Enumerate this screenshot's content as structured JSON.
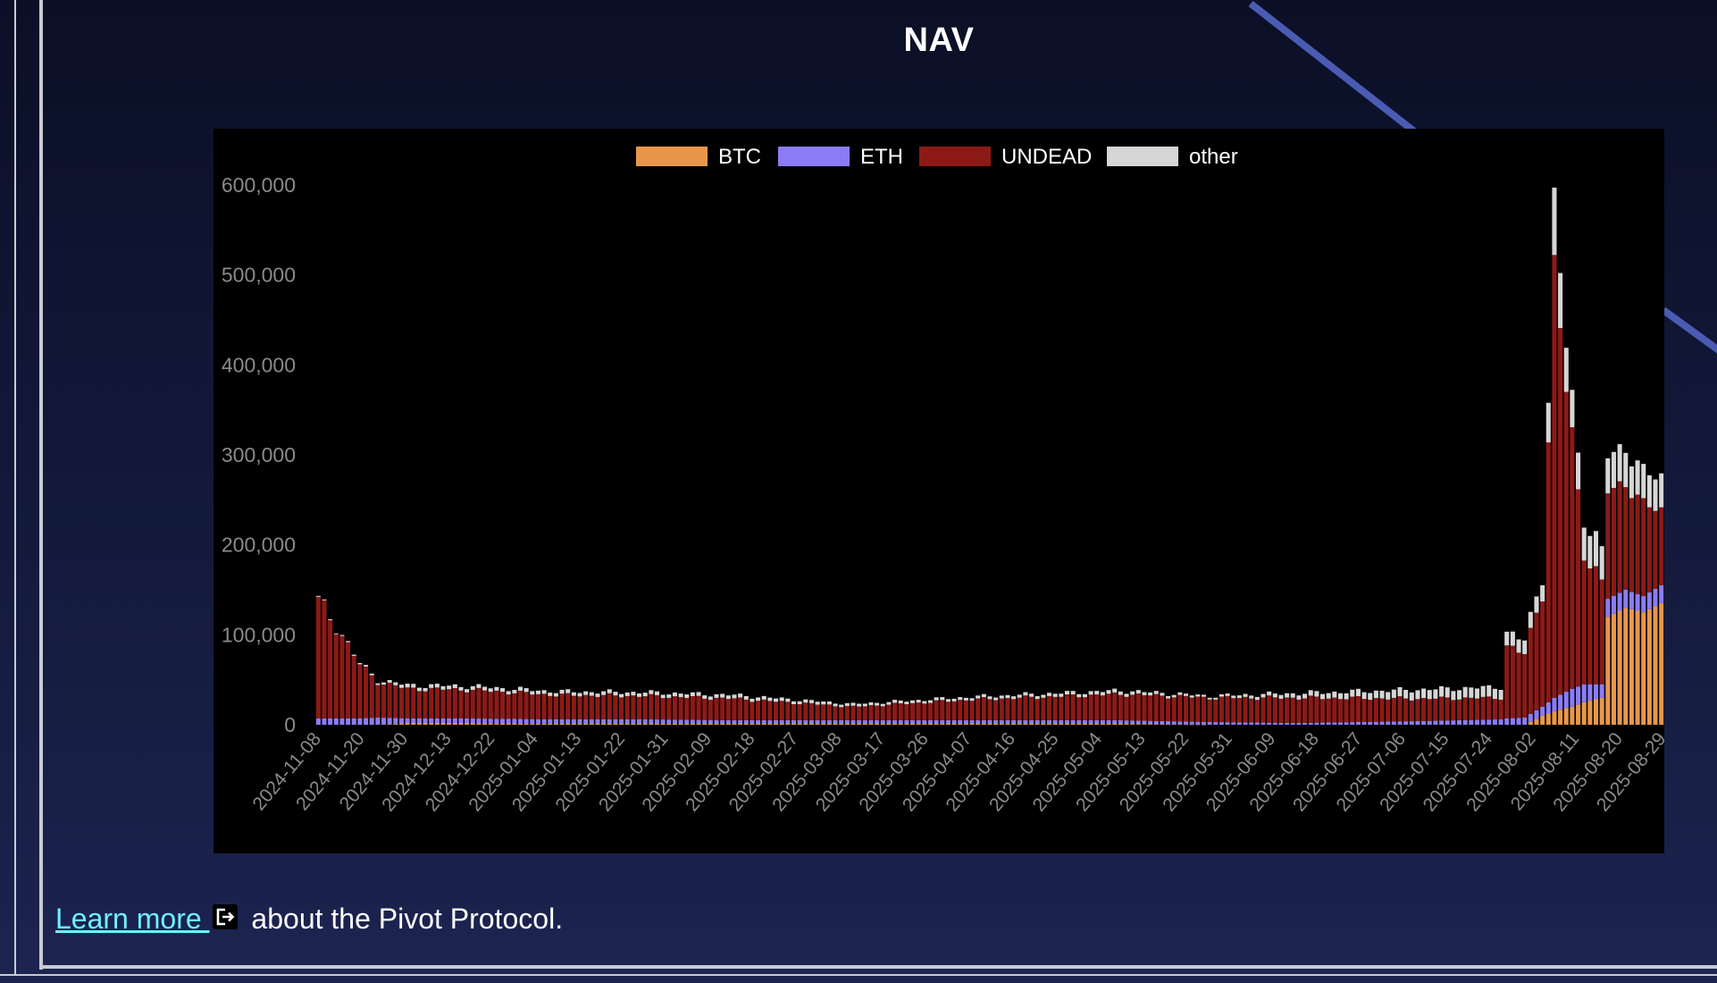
{
  "title": "NAV",
  "footer": {
    "link_text": "Learn more ",
    "link_icon": "external-link-icon",
    "suffix_text": " about the Pivot Protocol."
  },
  "colors": {
    "BTC": "#e8974a",
    "ETH": "#8b7cf6",
    "UNDEAD": "#8b1a17",
    "other": "#d6d6d6",
    "link": "#6ff2ff"
  },
  "chart_data": {
    "type": "bar",
    "stacked": true,
    "title": "",
    "xlabel": "",
    "ylabel": "",
    "ylim": [
      0,
      600000
    ],
    "y_ticks": [
      0,
      100000,
      200000,
      300000,
      400000,
      500000,
      600000
    ],
    "y_tick_labels": [
      "0",
      "100,000",
      "200,000",
      "300,000",
      "400,000",
      "500,000",
      "600,000"
    ],
    "grid": false,
    "legend": "top-center",
    "series_names": [
      "BTC",
      "ETH",
      "UNDEAD",
      "other"
    ],
    "x_tick_labels": [
      "2024-11-08",
      "2024-11-20",
      "2024-11-30",
      "2024-12-13",
      "2024-12-22",
      "2025-01-04",
      "2025-01-13",
      "2025-01-22",
      "2025-01-31",
      "2025-02-09",
      "2025-02-18",
      "2025-02-27",
      "2025-03-08",
      "2025-03-17",
      "2025-03-26",
      "2025-04-07",
      "2025-04-16",
      "2025-04-25",
      "2025-05-04",
      "2025-05-13",
      "2025-05-22",
      "2025-05-31",
      "2025-06-09",
      "2025-06-18",
      "2025-06-27",
      "2025-07-06",
      "2025-07-15",
      "2025-07-24",
      "2025-08-02",
      "2025-08-11",
      "2025-08-20",
      "2025-08-29"
    ],
    "anchors": [
      {
        "pos": 0,
        "BTC": 0,
        "ETH": 7000,
        "UNDEAD": 130000,
        "other": 1000
      },
      {
        "pos": 3,
        "BTC": 0,
        "ETH": 7000,
        "UNDEAD": 103000,
        "other": 1000
      },
      {
        "pos": 7,
        "BTC": 0,
        "ETH": 7000,
        "UNDEAD": 60000,
        "other": 1500
      },
      {
        "pos": 10,
        "BTC": 0,
        "ETH": 8000,
        "UNDEAD": 40000,
        "other": 2000
      },
      {
        "pos": 15,
        "BTC": 2000,
        "ETH": 5000,
        "UNDEAD": 33000,
        "other": 4000
      },
      {
        "pos": 25,
        "BTC": 2000,
        "ETH": 5000,
        "UNDEAD": 32000,
        "other": 4000
      },
      {
        "pos": 40,
        "BTC": 1000,
        "ETH": 5000,
        "UNDEAD": 27000,
        "other": 4000
      },
      {
        "pos": 55,
        "BTC": 1000,
        "ETH": 5000,
        "UNDEAD": 26000,
        "other": 4000
      },
      {
        "pos": 70,
        "BTC": 1000,
        "ETH": 4000,
        "UNDEAD": 24000,
        "other": 4000
      },
      {
        "pos": 90,
        "BTC": 1000,
        "ETH": 4000,
        "UNDEAD": 15000,
        "other": 3000
      },
      {
        "pos": 110,
        "BTC": 1000,
        "ETH": 4000,
        "UNDEAD": 23000,
        "other": 3000
      },
      {
        "pos": 135,
        "BTC": 1000,
        "ETH": 4000,
        "UNDEAD": 29000,
        "other": 4000
      },
      {
        "pos": 150,
        "BTC": 0,
        "ETH": 3000,
        "UNDEAD": 27000,
        "other": 2000
      },
      {
        "pos": 165,
        "BTC": 0,
        "ETH": 2000,
        "UNDEAD": 28000,
        "other": 5000
      },
      {
        "pos": 185,
        "BTC": 0,
        "ETH": 4000,
        "UNDEAD": 25000,
        "other": 10000
      },
      {
        "pos": 199,
        "BTC": 0,
        "ETH": 6000,
        "UNDEAD": 24000,
        "other": 12000
      },
      {
        "pos": 200,
        "BTC": 0,
        "ETH": 7000,
        "UNDEAD": 80000,
        "other": 15000
      },
      {
        "pos": 203,
        "BTC": 0,
        "ETH": 8000,
        "UNDEAD": 70000,
        "other": 15000
      },
      {
        "pos": 206,
        "BTC": 10000,
        "ETH": 10000,
        "UNDEAD": 130000,
        "other": 20000
      },
      {
        "pos": 208,
        "BTC": 15000,
        "ETH": 15000,
        "UNDEAD": 460000,
        "other": 70000
      },
      {
        "pos": 211,
        "BTC": 20000,
        "ETH": 20000,
        "UNDEAD": 280000,
        "other": 40000
      },
      {
        "pos": 213,
        "BTC": 25000,
        "ETH": 20000,
        "UNDEAD": 150000,
        "other": 40000
      },
      {
        "pos": 216,
        "BTC": 30000,
        "ETH": 15000,
        "UNDEAD": 110000,
        "other": 35000
      },
      {
        "pos": 217,
        "BTC": 120000,
        "ETH": 20000,
        "UNDEAD": 120000,
        "other": 40000
      },
      {
        "pos": 220,
        "BTC": 130000,
        "ETH": 20000,
        "UNDEAD": 120000,
        "other": 40000
      },
      {
        "pos": 223,
        "BTC": 125000,
        "ETH": 18000,
        "UNDEAD": 100000,
        "other": 35000
      },
      {
        "pos": 226,
        "BTC": 135000,
        "ETH": 20000,
        "UNDEAD": 85000,
        "other": 37000
      }
    ],
    "n_days": 227,
    "tick_interval_days": 7.3
  }
}
